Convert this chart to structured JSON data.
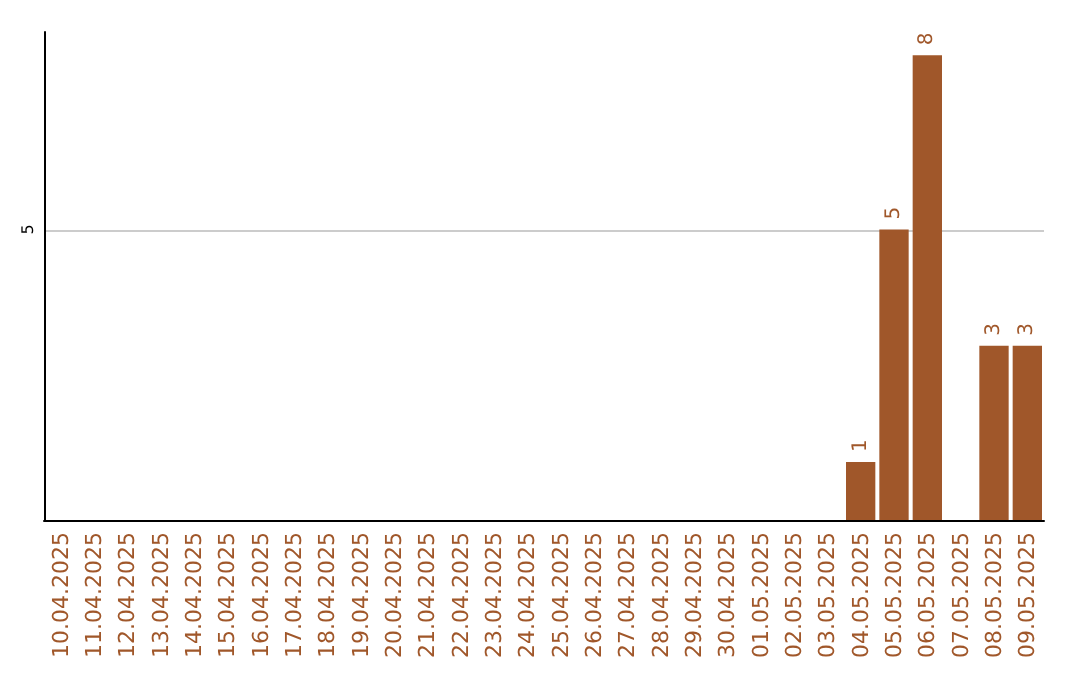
{
  "chart_data": {
    "type": "bar",
    "categories": [
      "10.04.2025",
      "11.04.2025",
      "12.04.2025",
      "13.04.2025",
      "14.04.2025",
      "15.04.2025",
      "16.04.2025",
      "17.04.2025",
      "18.04.2025",
      "19.04.2025",
      "20.04.2025",
      "21.04.2025",
      "22.04.2025",
      "23.04.2025",
      "24.04.2025",
      "25.04.2025",
      "26.04.2025",
      "27.04.2025",
      "28.04.2025",
      "29.04.2025",
      "30.04.2025",
      "01.05.2025",
      "02.05.2025",
      "03.05.2025",
      "04.05.2025",
      "05.05.2025",
      "06.05.2025",
      "07.05.2025",
      "08.05.2025",
      "09.05.2025"
    ],
    "values": [
      null,
      null,
      null,
      null,
      null,
      null,
      null,
      null,
      null,
      null,
      null,
      null,
      null,
      null,
      null,
      null,
      null,
      null,
      null,
      null,
      null,
      null,
      null,
      null,
      1,
      5,
      8,
      null,
      3,
      3
    ],
    "data_labels": true,
    "color": "#a0572a",
    "ylim": [
      0,
      8.4
    ],
    "yticks": [
      5
    ],
    "grid": "y"
  }
}
